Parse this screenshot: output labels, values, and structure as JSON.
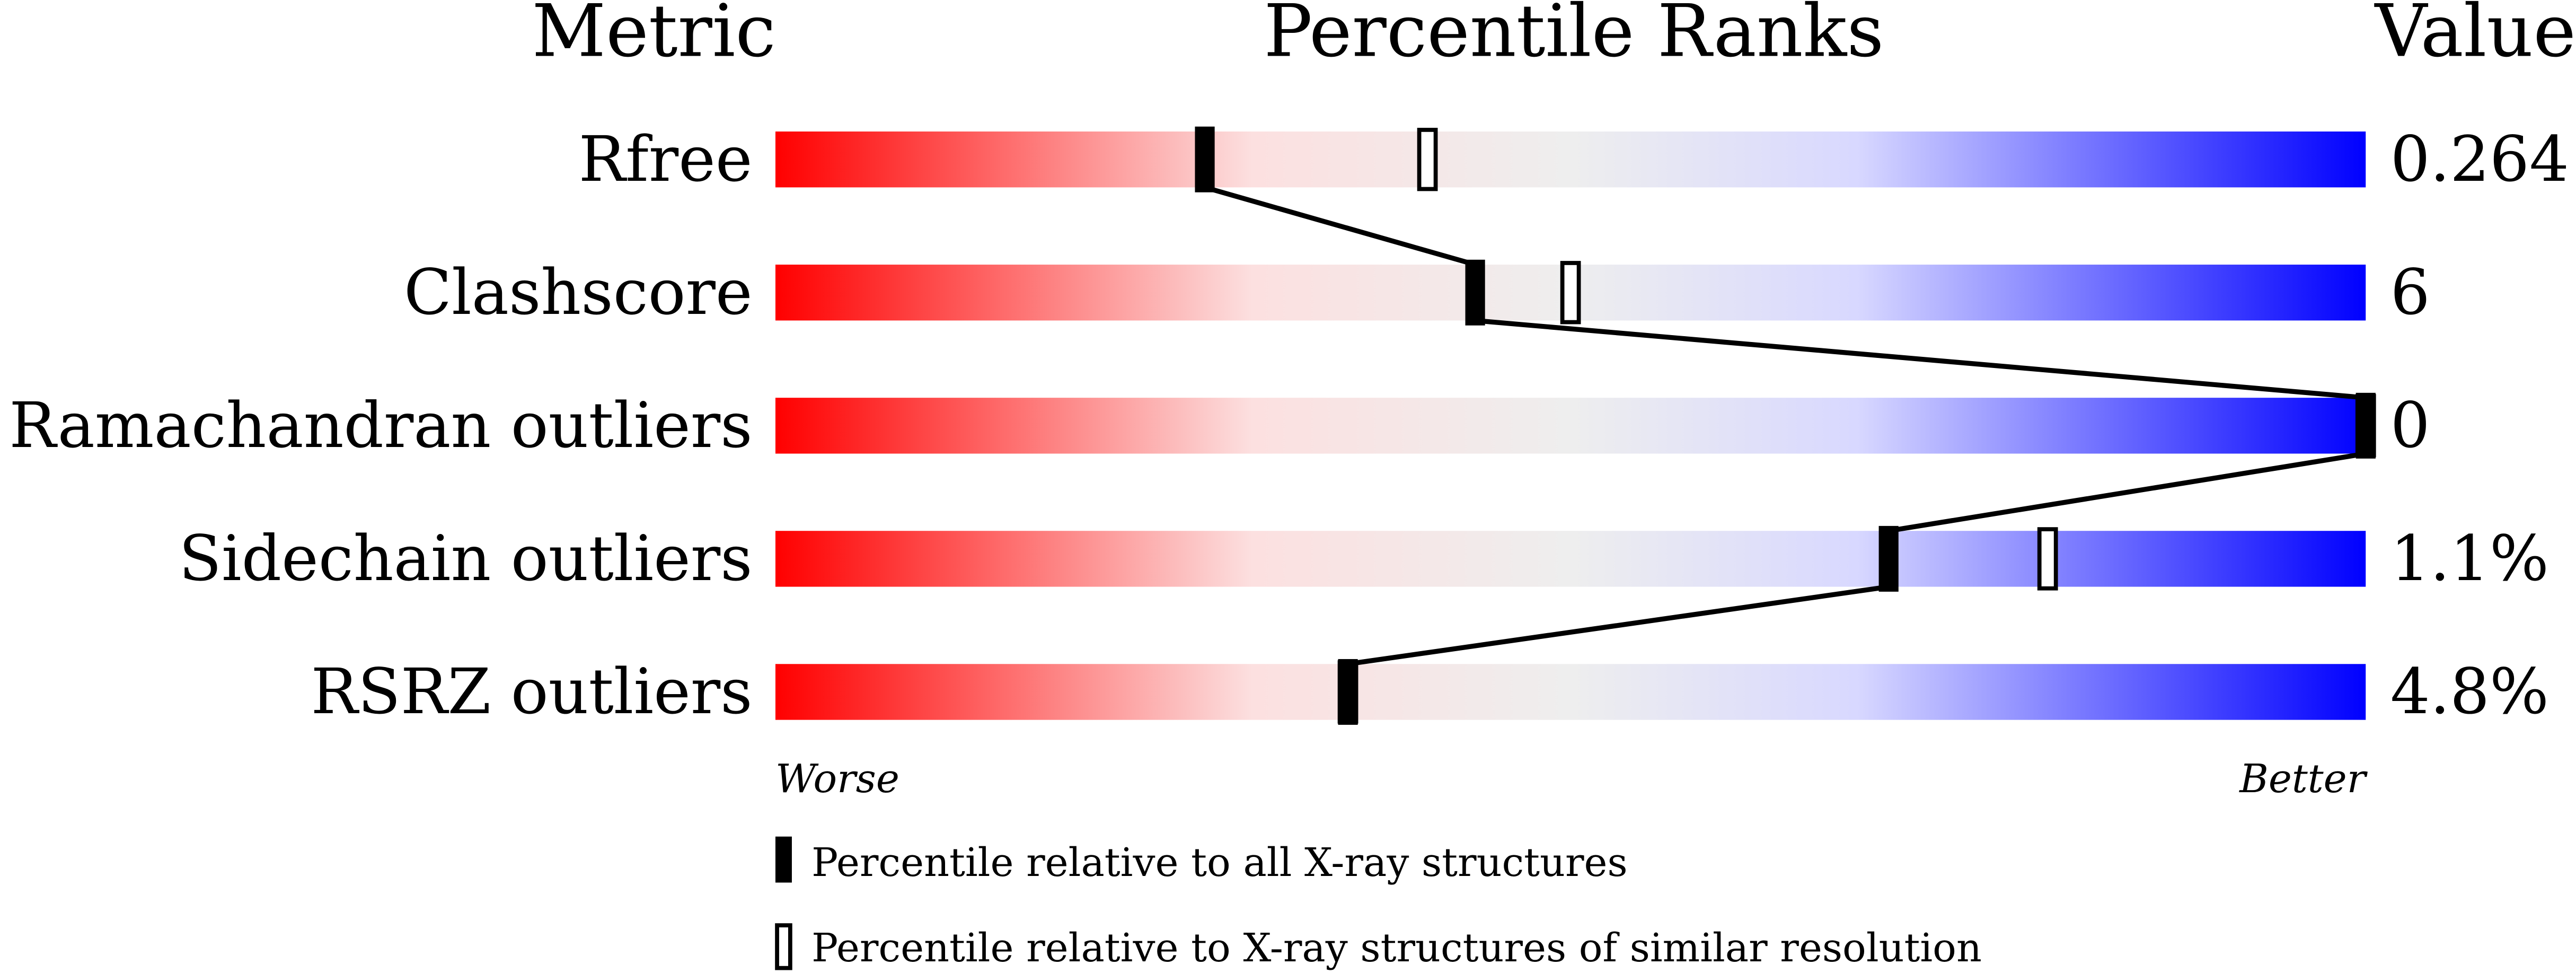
{
  "chart_data": {
    "type": "percentile-bar",
    "headers": {
      "metric": "Metric",
      "ranks": "Percentile Ranks",
      "value": "Value"
    },
    "xlim": [
      0,
      100
    ],
    "axis_labels": {
      "worse": "Worse",
      "better": "Better"
    },
    "metrics": [
      {
        "name": "Rfree",
        "value": "0.264",
        "percentile_all": 27,
        "percentile_similar": 41
      },
      {
        "name": "Clashscore",
        "value": "6",
        "percentile_all": 44,
        "percentile_similar": 50
      },
      {
        "name": "Ramachandran outliers",
        "value": "0",
        "percentile_all": 100,
        "percentile_similar": 100
      },
      {
        "name": "Sidechain outliers",
        "value": "1.1%",
        "percentile_all": 70,
        "percentile_similar": 80
      },
      {
        "name": "RSRZ outliers",
        "value": "4.8%",
        "percentile_all": 36,
        "percentile_similar": 36
      }
    ],
    "legend": {
      "all": "Percentile relative to all X-ray structures",
      "similar": "Percentile relative to X-ray structures of similar resolution"
    },
    "colors": {
      "worse": "#ff0000",
      "middle": "#eeeeee",
      "better": "#0000ff",
      "marker": "#000000"
    }
  }
}
